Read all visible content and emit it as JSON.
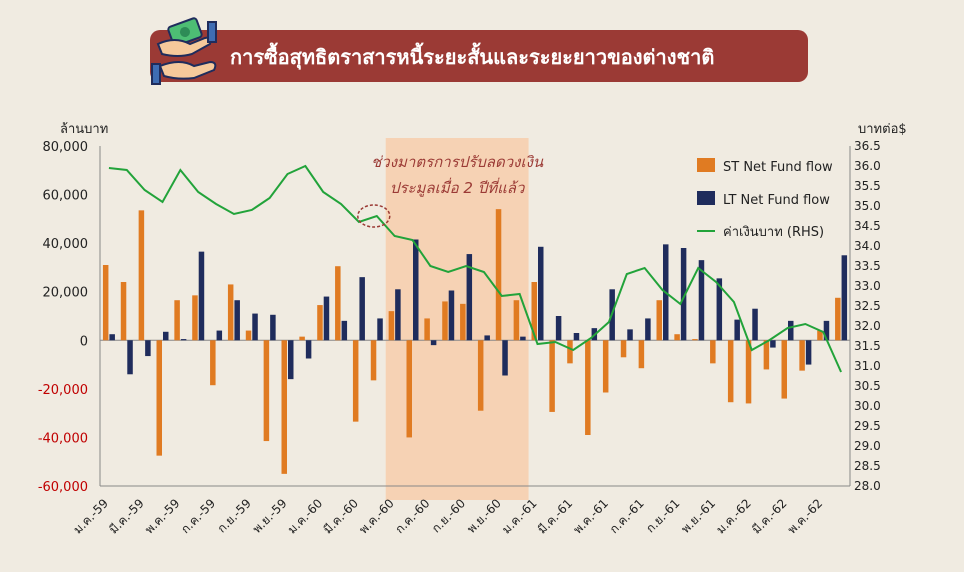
{
  "header": {
    "title": "การซื้อสุทธิตราสารหนี้ระยะสั้นและระยะยาวของต่างชาติ",
    "icon": "money-exchange-hands-icon"
  },
  "units": {
    "left": "ล้านบาท",
    "right": "บาทต่อ$"
  },
  "highlight": {
    "line1": "ช่วงมาตรการปรับลดวงเงิน",
    "line2": "ประมูลเมื่อ 2 ปีที่แล้ว"
  },
  "colors": {
    "st": "#e07b22",
    "lt": "#1f2c5c",
    "line": "#22a33a",
    "highlight": "#f6d2b4",
    "banner": "#9b3a35",
    "neg_tick": "#c00000"
  },
  "chart_data": {
    "type": "bar",
    "months": [
      "ม.ค.-59",
      "ก.พ.-59",
      "มี.ค.-59",
      "เม.ย.-59",
      "พ.ค.-59",
      "มิ.ย.-59",
      "ก.ค.-59",
      "ส.ค.-59",
      "ก.ย.-59",
      "ต.ค.-59",
      "พ.ย.-59",
      "ธ.ค.-59",
      "ม.ค.-60",
      "ก.พ.-60",
      "มี.ค.-60",
      "เม.ย.-60",
      "พ.ค.-60",
      "มิ.ย.-60",
      "ก.ค.-60",
      "ส.ค.-60",
      "ก.ย.-60",
      "ต.ค.-60",
      "พ.ย.-60",
      "ธ.ค.-60",
      "ม.ค.-61",
      "ก.พ.-61",
      "มี.ค.-61",
      "เม.ย.-61",
      "พ.ค.-61",
      "มิ.ย.-61",
      "ก.ค.-61",
      "ส.ค.-61",
      "ก.ย.-61",
      "ต.ค.-61",
      "พ.ย.-61",
      "ธ.ค.-61",
      "ม.ค.-62",
      "ก.พ.-62",
      "มี.ค.-62",
      "เม.ย.-62",
      "พ.ค.-62",
      "มิ.ย.-62"
    ],
    "x_tick_labels": [
      "ม.ค.-59",
      "มี.ค.-59",
      "พ.ค.-59",
      "ก.ค.-59",
      "ก.ย.-59",
      "พ.ย.-59",
      "ม.ค.-60",
      "มี.ค.-60",
      "พ.ค.-60",
      "ก.ค.-60",
      "ก.ย.-60",
      "พ.ย.-60",
      "ม.ค.-61",
      "มี.ค.-61",
      "พ.ค.-61",
      "ก.ค.-61",
      "ก.ย.-61",
      "พ.ย.-61",
      "ม.ค.-62",
      "มี.ค.-62",
      "พ.ค.-62"
    ],
    "series": [
      {
        "name": "ST Net Fund flow",
        "axis": "left",
        "kind": "bar",
        "values": [
          31000,
          24000,
          53500,
          -47500,
          16500,
          18500,
          -18500,
          23000,
          4000,
          -41500,
          -55000,
          1500,
          14500,
          30500,
          -33500,
          -16500,
          12000,
          -40000,
          9000,
          16000,
          15000,
          -29000,
          54000,
          16500,
          24000,
          -29500,
          -9500,
          -39000,
          -21500,
          -7000,
          -11500,
          16500,
          2500,
          500,
          -9500,
          -25500,
          -26000,
          -12000,
          -24000,
          -12500,
          4000,
          17500
        ]
      },
      {
        "name": "LT Net Fund flow",
        "axis": "left",
        "kind": "bar",
        "values": [
          2500,
          -14000,
          -6500,
          3500,
          500,
          36500,
          4000,
          16500,
          11000,
          10500,
          -16000,
          -7500,
          18000,
          8000,
          26000,
          9000,
          21000,
          41500,
          -2000,
          20500,
          35500,
          2000,
          -14500,
          1500,
          38500,
          10000,
          3000,
          5000,
          21000,
          4500,
          9000,
          39500,
          38000,
          33000,
          25500,
          8500,
          13000,
          -3000,
          8000,
          -10000,
          8000,
          35000
        ]
      },
      {
        "name": "ค่าเงินบาท (RHS)",
        "axis": "right",
        "kind": "line",
        "values": [
          35.95,
          35.9,
          35.4,
          35.1,
          35.9,
          35.35,
          35.05,
          34.8,
          34.9,
          35.2,
          35.8,
          36.0,
          35.35,
          35.05,
          34.6,
          34.75,
          34.25,
          34.15,
          33.5,
          33.35,
          33.5,
          33.35,
          32.75,
          32.8,
          31.55,
          31.6,
          31.4,
          31.7,
          32.1,
          33.3,
          33.45,
          32.9,
          32.55,
          33.45,
          33.1,
          32.6,
          31.4,
          31.65,
          31.95,
          32.05,
          31.85,
          30.85
        ]
      }
    ],
    "y_left": {
      "min": -60000,
      "max": 80000,
      "step": 20000,
      "tick_labels": [
        "80,000",
        "60,000",
        "40,000",
        "20,000",
        "0",
        "-20,000",
        "-40,000",
        "-60,000"
      ]
    },
    "y_right": {
      "min": 28.0,
      "max": 36.5,
      "step": 0.5,
      "tick_labels": [
        "36.5",
        "36.0",
        "35.5",
        "35.0",
        "34.5",
        "34.0",
        "33.5",
        "33.0",
        "32.5",
        "32.0",
        "31.5",
        "31.0",
        "30.5",
        "30.0",
        "29.5",
        "29.0",
        "28.5",
        "28.0"
      ]
    },
    "highlight_range": [
      "พ.ค.-60",
      "ธ.ค.-60"
    ],
    "circled_point": "เม.ย.-60",
    "legend_position": "top-right",
    "grid": false
  }
}
